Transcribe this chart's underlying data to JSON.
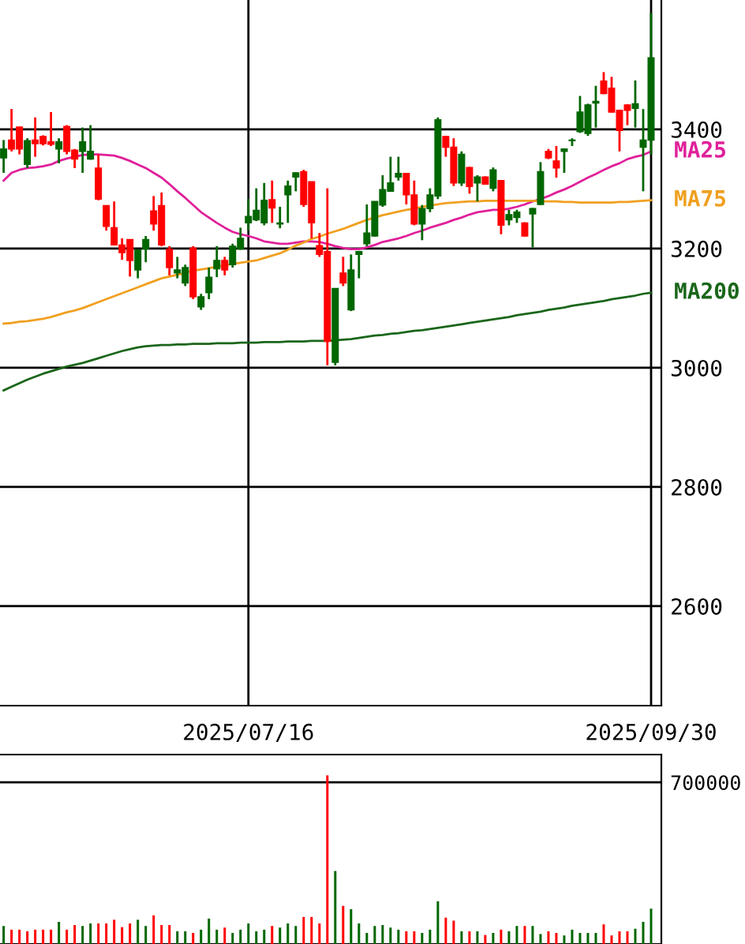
{
  "chart_data": [
    {
      "type": "candlestick",
      "categories": [
        null,
        null,
        null,
        null,
        null,
        null,
        null,
        null,
        null,
        null,
        null,
        null,
        null,
        null,
        null,
        null,
        null,
        null,
        null,
        null,
        null,
        null,
        null,
        null,
        null,
        null,
        null,
        null,
        null,
        null,
        null,
        "2025/07/16",
        null,
        null,
        null,
        null,
        null,
        null,
        null,
        null,
        null,
        null,
        null,
        null,
        null,
        null,
        null,
        null,
        null,
        null,
        null,
        null,
        null,
        null,
        null,
        null,
        null,
        null,
        null,
        null,
        null,
        null,
        null,
        null,
        null,
        null,
        null,
        null,
        null,
        null,
        null,
        null,
        null,
        null,
        null,
        null,
        null,
        null,
        null,
        null,
        null,
        null,
        "2025/09/30"
      ],
      "ohlc": [
        [
          3352,
          3382,
          3327,
          3367
        ],
        [
          3382,
          3434,
          3363,
          3367
        ],
        [
          3404,
          3404,
          3358,
          3367
        ],
        [
          3341,
          3385,
          3335,
          3381
        ],
        [
          3382,
          3420,
          3354,
          3376
        ],
        [
          3388,
          3390,
          3373,
          3376
        ],
        [
          3379,
          3429,
          3372,
          3375
        ],
        [
          3367,
          3385,
          3343,
          3379
        ],
        [
          3405,
          3407,
          3358,
          3363
        ],
        [
          3365,
          3367,
          3335,
          3350
        ],
        [
          3363,
          3403,
          3327,
          3379
        ],
        [
          3350,
          3407,
          3349,
          3363
        ],
        [
          3335,
          3358,
          3281,
          3283
        ],
        [
          3272,
          3272,
          3230,
          3237
        ],
        [
          3235,
          3279,
          3205,
          3206
        ],
        [
          3206,
          3217,
          3181,
          3193
        ],
        [
          3215,
          3215,
          3153,
          3180
        ],
        [
          3164,
          3198,
          3150,
          3198
        ],
        [
          3199,
          3221,
          3177,
          3215
        ],
        [
          3263,
          3288,
          3230,
          3241
        ],
        [
          3272,
          3294,
          3204,
          3206
        ],
        [
          3199,
          3204,
          3155,
          3168
        ],
        [
          3159,
          3186,
          3150,
          3164
        ],
        [
          3142,
          3173,
          3137,
          3168
        ],
        [
          3201,
          3204,
          3115,
          3119
        ],
        [
          3102,
          3124,
          3097,
          3119
        ],
        [
          3126,
          3168,
          3115,
          3152
        ],
        [
          3166,
          3204,
          3152,
          3180
        ],
        [
          3180,
          3186,
          3155,
          3164
        ],
        [
          3173,
          3208,
          3168,
          3204
        ],
        [
          3199,
          3235,
          3198,
          3217
        ],
        [
          3243,
          3283,
          3230,
          3254
        ],
        [
          3248,
          3301,
          3246,
          3264
        ],
        [
          3243,
          3310,
          3239,
          3281
        ],
        [
          3282,
          3314,
          3243,
          3268
        ],
        [
          3241,
          3270,
          3234,
          3243
        ],
        [
          3290,
          3314,
          3243,
          3305
        ],
        [
          3320,
          3328,
          3296,
          3327
        ],
        [
          3329,
          3332,
          3270,
          3274
        ],
        [
          3312,
          3312,
          3217,
          3243
        ],
        [
          3205,
          3226,
          3186,
          3190
        ],
        [
          3195,
          3301,
          3004,
          3044
        ],
        [
          3009,
          3133,
          3004,
          3133
        ],
        [
          3159,
          3186,
          3137,
          3142
        ],
        [
          3097,
          3190,
          3095,
          3164
        ],
        [
          3190,
          3196,
          3150,
          3195
        ],
        [
          3208,
          3274,
          3204,
          3226
        ],
        [
          3221,
          3279,
          3220,
          3279
        ],
        [
          3273,
          3323,
          3270,
          3299
        ],
        [
          3296,
          3354,
          3295,
          3310
        ],
        [
          3320,
          3354,
          3314,
          3326
        ],
        [
          3326,
          3327,
          3274,
          3290
        ],
        [
          3290,
          3314,
          3239,
          3241
        ],
        [
          3241,
          3273,
          3214,
          3267
        ],
        [
          3267,
          3301,
          3261,
          3290
        ],
        [
          3288,
          3420,
          3283,
          3416
        ],
        [
          3388,
          3389,
          3354,
          3370
        ],
        [
          3370,
          3385,
          3305,
          3310
        ],
        [
          3310,
          3363,
          3305,
          3358
        ],
        [
          3336,
          3337,
          3292,
          3304
        ],
        [
          3310,
          3323,
          3279,
          3320
        ],
        [
          3320,
          3321,
          3307,
          3308
        ],
        [
          3301,
          3336,
          3296,
          3332
        ],
        [
          3314,
          3315,
          3224,
          3239
        ],
        [
          3248,
          3265,
          3239,
          3257
        ],
        [
          3252,
          3265,
          3243,
          3261
        ],
        [
          3243,
          3244,
          3220,
          3221
        ],
        [
          3258,
          3268,
          3202,
          3267
        ],
        [
          3274,
          3345,
          3273,
          3329
        ],
        [
          3363,
          3367,
          3350,
          3352
        ],
        [
          3347,
          3372,
          3319,
          3335
        ],
        [
          3363,
          3368,
          3327,
          3367
        ],
        [
          3381,
          3385,
          3372,
          3382
        ],
        [
          3396,
          3456,
          3394,
          3429
        ],
        [
          3393,
          3443,
          3389,
          3441
        ],
        [
          3444,
          3473,
          3403,
          3447
        ],
        [
          3481,
          3496,
          3459,
          3460
        ],
        [
          3469,
          3488,
          3428,
          3429
        ],
        [
          3432,
          3433,
          3363,
          3398
        ],
        [
          3441,
          3442,
          3407,
          3432
        ],
        [
          3435,
          3482,
          3403,
          3443
        ],
        [
          3370,
          3434,
          3296,
          3382
        ],
        [
          3382,
          3595,
          3358,
          3520
        ]
      ],
      "colors": [
        "#006600",
        "#ff0000",
        "#ff0000",
        "#006600",
        "#ff0000",
        "#ff0000",
        "#ff0000",
        "#006600",
        "#ff0000",
        "#ff0000",
        "#006600",
        "#006600",
        "#ff0000",
        "#ff0000",
        "#ff0000",
        "#ff0000",
        "#ff0000",
        "#006600",
        "#006600",
        "#ff0000",
        "#ff0000",
        "#ff0000",
        "#006600",
        "#006600",
        "#ff0000",
        "#006600",
        "#006600",
        "#006600",
        "#ff0000",
        "#006600",
        "#006600",
        "#006600",
        "#006600",
        "#006600",
        "#ff0000",
        "#006600",
        "#006600",
        "#006600",
        "#ff0000",
        "#ff0000",
        "#ff0000",
        "#ff0000",
        "#006600",
        "#ff0000",
        "#006600",
        "#006600",
        "#006600",
        "#006600",
        "#006600",
        "#006600",
        "#006600",
        "#ff0000",
        "#ff0000",
        "#006600",
        "#006600",
        "#006600",
        "#ff0000",
        "#ff0000",
        "#006600",
        "#ff0000",
        "#006600",
        "#ff0000",
        "#006600",
        "#ff0000",
        "#006600",
        "#006600",
        "#ff0000",
        "#006600",
        "#006600",
        "#ff0000",
        "#ff0000",
        "#006600",
        "#006600",
        "#006600",
        "#006600",
        "#006600",
        "#ff0000",
        "#ff0000",
        "#ff0000",
        "#ff0000",
        "#006600",
        "#006600",
        "#006600"
      ],
      "series": [
        {
          "type": "line",
          "name": "MA25",
          "color": "#e0209a",
          "values": [
            3314,
            3327,
            3332,
            3335,
            3336,
            3338,
            3341,
            3347,
            3351,
            3354,
            3357,
            3358,
            3358,
            3357,
            3356,
            3352,
            3347,
            3341,
            3335,
            3327,
            3319,
            3308,
            3296,
            3285,
            3273,
            3261,
            3252,
            3243,
            3235,
            3228,
            3224,
            3221,
            3217,
            3212,
            3210,
            3208,
            3208,
            3210,
            3212,
            3212,
            3211,
            3208,
            3204,
            3201,
            3199,
            3199,
            3202,
            3206,
            3211,
            3214,
            3217,
            3221,
            3226,
            3230,
            3235,
            3239,
            3243,
            3248,
            3252,
            3257,
            3261,
            3263,
            3265,
            3265,
            3267,
            3270,
            3274,
            3279,
            3283,
            3288,
            3294,
            3299,
            3305,
            3312,
            3319,
            3325,
            3332,
            3338,
            3343,
            3350,
            3354,
            3357,
            3363
          ]
        },
        {
          "type": "line",
          "name": "MA75",
          "color": "#f0a020",
          "values": [
            3074,
            3075,
            3077,
            3078,
            3080,
            3082,
            3085,
            3089,
            3093,
            3096,
            3100,
            3105,
            3110,
            3115,
            3120,
            3125,
            3130,
            3135,
            3140,
            3145,
            3150,
            3153,
            3156,
            3159,
            3163,
            3165,
            3167,
            3170,
            3172,
            3174,
            3176,
            3178,
            3180,
            3184,
            3188,
            3192,
            3198,
            3205,
            3210,
            3216,
            3220,
            3225,
            3229,
            3233,
            3238,
            3243,
            3248,
            3252,
            3256,
            3259,
            3262,
            3265,
            3267,
            3270,
            3272,
            3274,
            3276,
            3277,
            3278,
            3279,
            3279,
            3280,
            3280,
            3280,
            3280,
            3280,
            3280,
            3280,
            3279,
            3279,
            3279,
            3278,
            3278,
            3277,
            3277,
            3277,
            3277,
            3277,
            3278,
            3278,
            3279,
            3280,
            3281
          ]
        },
        {
          "type": "line",
          "name": "MA200",
          "color": "#1a661a",
          "values": [
            2962,
            2968,
            2974,
            2980,
            2985,
            2990,
            2994,
            2998,
            3002,
            3005,
            3008,
            3012,
            3016,
            3020,
            3024,
            3028,
            3031,
            3034,
            3036,
            3037,
            3038,
            3038,
            3039,
            3039,
            3040,
            3040,
            3040,
            3041,
            3041,
            3041,
            3042,
            3042,
            3042,
            3043,
            3043,
            3043,
            3044,
            3044,
            3044,
            3045,
            3045,
            3045,
            3046,
            3047,
            3048,
            3050,
            3052,
            3054,
            3055,
            3057,
            3058,
            3060,
            3062,
            3063,
            3065,
            3067,
            3069,
            3071,
            3073,
            3075,
            3077,
            3079,
            3081,
            3083,
            3085,
            3088,
            3090,
            3092,
            3094,
            3097,
            3099,
            3101,
            3104,
            3106,
            3108,
            3110,
            3112,
            3115,
            3117,
            3119,
            3121,
            3124,
            3126
          ]
        }
      ],
      "ylim": [
        2433,
        3617
      ],
      "yticks": [
        2600,
        2800,
        3000,
        3200,
        3400
      ],
      "grid": true
    },
    {
      "type": "bar",
      "categories": [
        null,
        null,
        null,
        null,
        null,
        null,
        null,
        null,
        null,
        null,
        null,
        null,
        null,
        null,
        null,
        null,
        null,
        null,
        null,
        null,
        null,
        null,
        null,
        null,
        null,
        null,
        null,
        null,
        null,
        null,
        null,
        null,
        null,
        null,
        null,
        null,
        null,
        null,
        null,
        null,
        null,
        null,
        null,
        null,
        null,
        null,
        null,
        null,
        null,
        null,
        null,
        null,
        null,
        null,
        null,
        null,
        null,
        null,
        null,
        null,
        null,
        null,
        null,
        null,
        null,
        null,
        null,
        null,
        null,
        null,
        null,
        null,
        null,
        null,
        null,
        null,
        null,
        null,
        null,
        null,
        null,
        null,
        null
      ],
      "values": [
        78000,
        62000,
        62000,
        55000,
        62000,
        62000,
        62000,
        96000,
        62000,
        82000,
        78000,
        89000,
        89000,
        89000,
        105000,
        73000,
        89000,
        105000,
        78000,
        124000,
        82000,
        82000,
        55000,
        55000,
        48000,
        62000,
        110000,
        62000,
        71000,
        48000,
        62000,
        89000,
        55000,
        62000,
        78000,
        71000,
        89000,
        78000,
        117000,
        117000,
        89000,
        730000,
        316000,
        165000,
        151000,
        89000,
        48000,
        78000,
        82000,
        71000,
        62000,
        55000,
        55000,
        48000,
        62000,
        185000,
        114000,
        101000,
        55000,
        55000,
        55000,
        39000,
        48000,
        62000,
        55000,
        78000,
        78000,
        78000,
        43000,
        55000,
        48000,
        37000,
        62000,
        48000,
        48000,
        48000,
        85000,
        37000,
        55000,
        55000,
        66000,
        96000,
        153000
      ],
      "colors": [
        "#006600",
        "#ff0000",
        "#ff0000",
        "#ff0000",
        "#ff0000",
        "#ff0000",
        "#ff0000",
        "#006600",
        "#ff0000",
        "#ff0000",
        "#006600",
        "#006600",
        "#ff0000",
        "#ff0000",
        "#ff0000",
        "#ff0000",
        "#ff0000",
        "#006600",
        "#006600",
        "#ff0000",
        "#ff0000",
        "#ff0000",
        "#006600",
        "#006600",
        "#ff0000",
        "#006600",
        "#006600",
        "#006600",
        "#ff0000",
        "#006600",
        "#006600",
        "#006600",
        "#006600",
        "#006600",
        "#ff0000",
        "#006600",
        "#006600",
        "#006600",
        "#ff0000",
        "#ff0000",
        "#ff0000",
        "#ff0000",
        "#006600",
        "#ff0000",
        "#006600",
        "#006600",
        "#006600",
        "#006600",
        "#006600",
        "#006600",
        "#006600",
        "#ff0000",
        "#ff0000",
        "#006600",
        "#006600",
        "#006600",
        "#ff0000",
        "#ff0000",
        "#006600",
        "#ff0000",
        "#006600",
        "#ff0000",
        "#006600",
        "#ff0000",
        "#006600",
        "#006600",
        "#ff0000",
        "#006600",
        "#006600",
        "#ff0000",
        "#ff0000",
        "#006600",
        "#006600",
        "#006600",
        "#006600",
        "#006600",
        "#ff0000",
        "#ff0000",
        "#ff0000",
        "#ff0000",
        "#006600",
        "#006600",
        "#006600"
      ],
      "ylim": [
        0,
        820000
      ],
      "yticks": [
        700000
      ],
      "grid": "y",
      "tick_labels": "y"
    }
  ]
}
